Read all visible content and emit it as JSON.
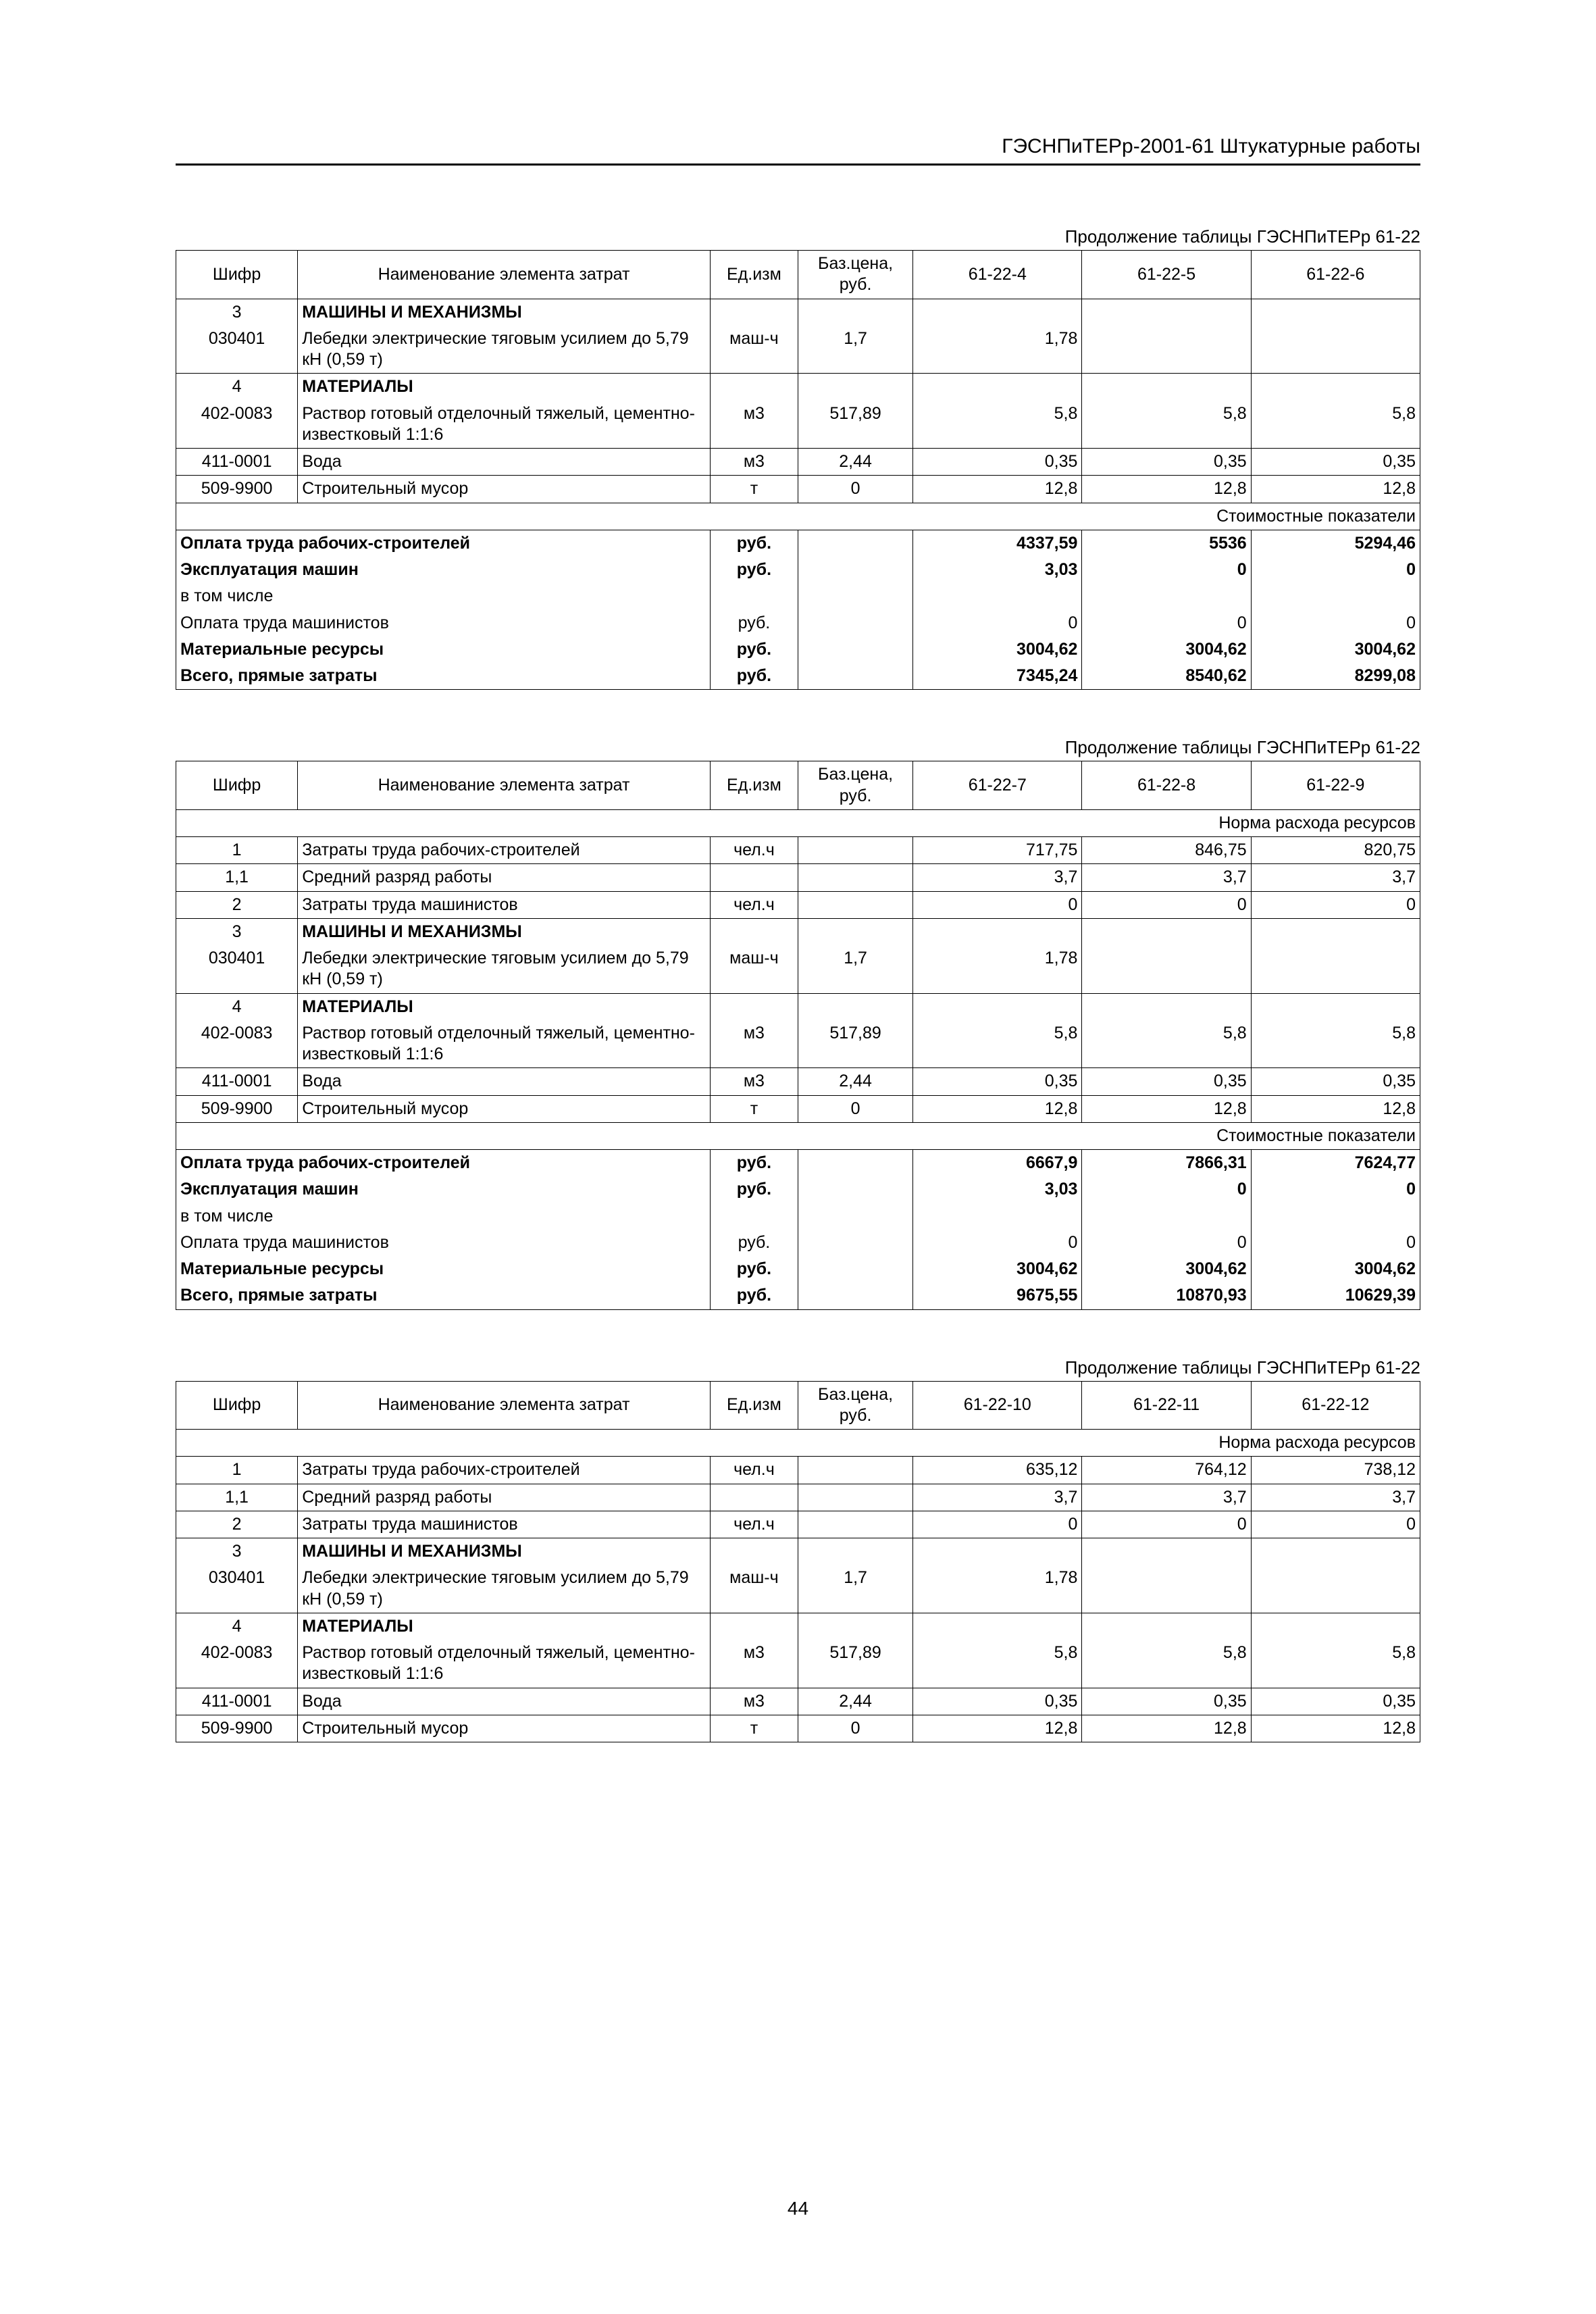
{
  "doc_header": "ГЭСНПиТЕРр-2001-61 Штукатурные работы",
  "continuation_label": "Продолжение таблицы ГЭСНПиТЕРр  61-22",
  "col_headers": {
    "shifr": "Шифр",
    "name": "Наименование элемента затрат",
    "unit": "Ед.изм",
    "price": "Баз.цена, руб."
  },
  "section_labels": {
    "norm": "Норма расхода ресурсов",
    "cost": "Стоимостные показатели"
  },
  "row_labels": {
    "machines": "МАШИНЫ И МЕХАНИЗМЫ",
    "materials": "МАТЕРИАЛЫ",
    "labor_cost": "Затраты труда рабочих-строителей",
    "avg_grade": "Средний разряд работы",
    "mach_labor": "Затраты труда машинистов",
    "winch": "Лебедки электрические тяговым усилием до 5,79 кН (0,59 т)",
    "mortar": "Раствор готовый отделочный тяжелый, цементно-известковый 1:1:6",
    "water": "Вода",
    "debris": "Строительный мусор",
    "pay_workers": "Оплата труда рабочих-строителей",
    "mach_oper": "Эксплуатация машин",
    "incl": "в том числе",
    "pay_machinists": "Оплата труда машинистов",
    "mat_res": "Материальные ресурсы",
    "total": "Всего, прямые затраты"
  },
  "units": {
    "mash_h": "маш-ч",
    "m3": "м3",
    "t": "т",
    "rub": "руб.",
    "chel_h": "чел.ч"
  },
  "codes": {
    "r1": "1",
    "r11": "1,1",
    "r2": "2",
    "r3": "3",
    "winch": "030401",
    "r4": "4",
    "mortar": "402-0083",
    "water": "411-0001",
    "debris": "509-9900"
  },
  "prices": {
    "winch": "1,7",
    "mortar": "517,89",
    "water": "2,44",
    "debris": "0"
  },
  "tables": [
    {
      "cols": [
        "61-22-4",
        "61-22-5",
        "61-22-6"
      ],
      "has_norm_header": false,
      "rows": [
        {
          "type": "machines_header"
        },
        {
          "type": "winch",
          "v": [
            "1,78",
            "",
            ""
          ]
        },
        {
          "type": "materials_header"
        },
        {
          "type": "mortar",
          "v": [
            "5,8",
            "5,8",
            "5,8"
          ]
        },
        {
          "type": "water",
          "v": [
            "0,35",
            "0,35",
            "0,35"
          ]
        },
        {
          "type": "debris",
          "v": [
            "12,8",
            "12,8",
            "12,8"
          ]
        }
      ],
      "cost_section": true,
      "cost": {
        "pay_workers": [
          "4337,59",
          "5536",
          "5294,46"
        ],
        "mach_oper": [
          "3,03",
          "0",
          "0"
        ],
        "pay_machinists": [
          "0",
          "0",
          "0"
        ],
        "mat_res": [
          "3004,62",
          "3004,62",
          "3004,62"
        ],
        "total": [
          "7345,24",
          "8540,62",
          "8299,08"
        ]
      }
    },
    {
      "cols": [
        "61-22-7",
        "61-22-8",
        "61-22-9"
      ],
      "has_norm_header": true,
      "rows": [
        {
          "type": "labor",
          "v": [
            "717,75",
            "846,75",
            "820,75"
          ]
        },
        {
          "type": "grade",
          "v": [
            "3,7",
            "3,7",
            "3,7"
          ]
        },
        {
          "type": "mach_labor",
          "v": [
            "0",
            "0",
            "0"
          ]
        },
        {
          "type": "machines_header"
        },
        {
          "type": "winch",
          "v": [
            "1,78",
            "",
            ""
          ]
        },
        {
          "type": "materials_header"
        },
        {
          "type": "mortar",
          "v": [
            "5,8",
            "5,8",
            "5,8"
          ]
        },
        {
          "type": "water",
          "v": [
            "0,35",
            "0,35",
            "0,35"
          ]
        },
        {
          "type": "debris",
          "v": [
            "12,8",
            "12,8",
            "12,8"
          ]
        }
      ],
      "cost_section": true,
      "cost": {
        "pay_workers": [
          "6667,9",
          "7866,31",
          "7624,77"
        ],
        "mach_oper": [
          "3,03",
          "0",
          "0"
        ],
        "pay_machinists": [
          "0",
          "0",
          "0"
        ],
        "mat_res": [
          "3004,62",
          "3004,62",
          "3004,62"
        ],
        "total": [
          "9675,55",
          "10870,93",
          "10629,39"
        ]
      }
    },
    {
      "cols": [
        "61-22-10",
        "61-22-11",
        "61-22-12"
      ],
      "has_norm_header": true,
      "rows": [
        {
          "type": "labor",
          "v": [
            "635,12",
            "764,12",
            "738,12"
          ]
        },
        {
          "type": "grade",
          "v": [
            "3,7",
            "3,7",
            "3,7"
          ]
        },
        {
          "type": "mach_labor",
          "v": [
            "0",
            "0",
            "0"
          ]
        },
        {
          "type": "machines_header"
        },
        {
          "type": "winch",
          "v": [
            "1,78",
            "",
            ""
          ]
        },
        {
          "type": "materials_header"
        },
        {
          "type": "mortar",
          "v": [
            "5,8",
            "5,8",
            "5,8"
          ]
        },
        {
          "type": "water",
          "v": [
            "0,35",
            "0,35",
            "0,35"
          ]
        },
        {
          "type": "debris",
          "v": [
            "12,8",
            "12,8",
            "12,8"
          ]
        }
      ],
      "cost_section": false
    }
  ],
  "page_number": "44"
}
